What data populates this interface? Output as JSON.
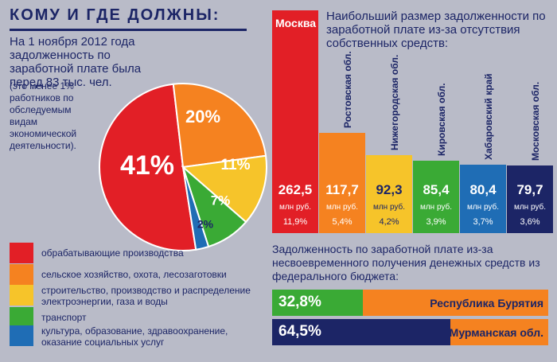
{
  "header": {
    "title": "КОМУ И ГДЕ ДОЛЖНЫ:"
  },
  "intro": {
    "text": "На 1 ноября 2012 года задолженность по заработной плате была перед 83 тыс. чел.",
    "note": "(это менее 1% работников по обследуемым видам экономической деятельности)."
  },
  "legend": [
    {
      "label": "обрабатывающие производства",
      "color": "#e21f26"
    },
    {
      "label": "сельское хозяйство, охота, лесозаготовки",
      "color": "#f58220"
    },
    {
      "label": "строительство, производство и распределение электроэнергии, газа и воды",
      "color": "#f6c42a"
    },
    {
      "label": "транспорт",
      "color": "#3aaa35"
    },
    {
      "label": "культура, образование, здравоохранение, оказание социальных услуг",
      "color": "#1f6db5"
    }
  ],
  "bar_heading": "Наибольший размер задолженности по заработной плате из-за отсутствия собственных средств:",
  "bottom_heading": "Задолженность по заработной плате из-за несвоевременного получения денежных средств из федерального бюджета:",
  "chart_data": [
    {
      "type": "pie",
      "title": "",
      "categories": [
        "обрабатывающие производства",
        "сельское хозяйство, охота, лесозаготовки",
        "строительство, производство и распределение электроэнергии, газа и воды",
        "транспорт",
        "культура, образование, здравоохранение, оказание социальных услуг"
      ],
      "values": [
        41,
        20,
        11,
        7,
        2
      ],
      "labels": [
        "41%",
        "20%",
        "11%",
        "7%",
        "2%"
      ],
      "colors": [
        "#e21f26",
        "#f58220",
        "#f6c42a",
        "#3aaa35",
        "#1f6db5"
      ]
    },
    {
      "type": "bar",
      "categories": [
        "Москва",
        "Ростовская обл.",
        "Нижегородская обл.",
        "Кировская обл.",
        "Хабаровский край",
        "Московская обл."
      ],
      "values": [
        262.5,
        117.7,
        92.3,
        85.4,
        80.4,
        79.7
      ],
      "value_labels": [
        "262,5",
        "117,7",
        "92,3",
        "85,4",
        "80,4",
        "79,7"
      ],
      "unit": "млн руб.",
      "shares": [
        "11,9%",
        "5,4%",
        "4,2%",
        "3,9%",
        "3,7%",
        "3,6%"
      ],
      "colors": [
        "#e21f26",
        "#f58220",
        "#f6c42a",
        "#3aaa35",
        "#1f6db5",
        "#1c2566"
      ]
    },
    {
      "type": "bar",
      "orientation": "horizontal",
      "categories": [
        "Республика Бурятия",
        "Мурманская обл."
      ],
      "values": [
        32.8,
        64.5
      ],
      "value_labels": [
        "32,8%",
        "64,5%"
      ],
      "colors": [
        "#3aaa35",
        "#1c2566"
      ],
      "rest_color": "#f58220"
    }
  ]
}
